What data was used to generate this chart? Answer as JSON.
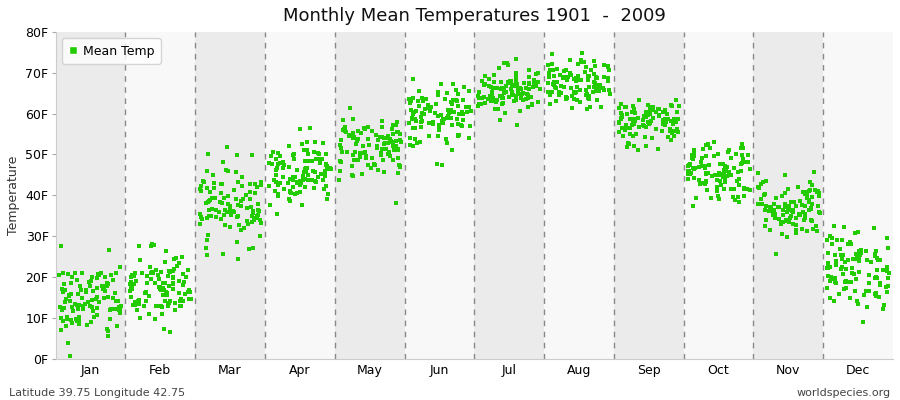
{
  "title": "Monthly Mean Temperatures 1901  -  2009",
  "ylabel": "Temperature",
  "ylim": [
    0,
    80
  ],
  "yticks": [
    0,
    10,
    20,
    30,
    40,
    50,
    60,
    70,
    80
  ],
  "ytick_labels": [
    "0F",
    "10F",
    "20F",
    "30F",
    "40F",
    "50F",
    "60F",
    "70F",
    "80F"
  ],
  "months": [
    "Jan",
    "Feb",
    "Mar",
    "Apr",
    "May",
    "Jun",
    "Jul",
    "Aug",
    "Sep",
    "Oct",
    "Nov",
    "Dec"
  ],
  "dot_color": "#22cc00",
  "dot_size": 6,
  "legend_label": "Mean Temp",
  "footer_left": "Latitude 39.75 Longitude 42.75",
  "footer_right": "worldspecies.org",
  "bg_color": "#ffffff",
  "band_colors": [
    "#ebebeb",
    "#f8f8f8"
  ],
  "monthly_mean": [
    14,
    17,
    38,
    46,
    52,
    59,
    66,
    67,
    58,
    46,
    37,
    22
  ],
  "monthly_std": [
    5,
    5,
    5,
    4,
    4,
    4,
    3,
    3,
    3,
    4,
    4,
    5
  ],
  "n_years": 109,
  "seed": 42,
  "dash_color": "#888888",
  "dash_linewidth": 1.0,
  "title_fontsize": 13,
  "tick_fontsize": 9,
  "ylabel_fontsize": 9,
  "footer_fontsize": 8
}
